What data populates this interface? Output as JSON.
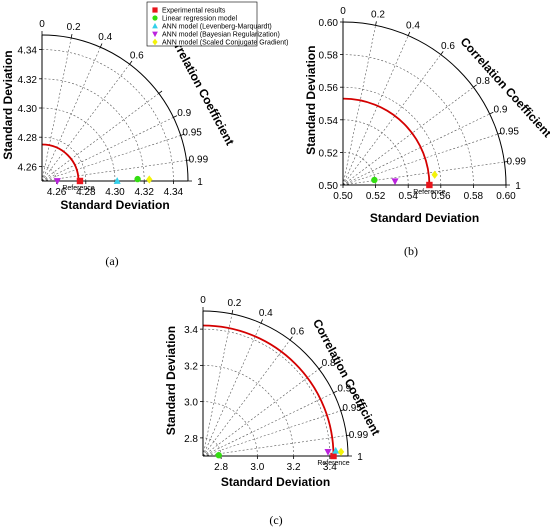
{
  "chart_data": [
    {
      "type": "scatter",
      "subtype": "taylor",
      "panel_label": "(a)",
      "xlabel": "Standard Deviation",
      "ylabel": "Standard Deviation",
      "arc_label": "Correlation Coefficient",
      "reference_label": "Reference",
      "std_range": [
        4.25,
        4.35
      ],
      "std_ticks": [
        4.26,
        4.28,
        4.3,
        4.32,
        4.34
      ],
      "std_tick_labels": [
        "4.26",
        "4.28",
        "4.30",
        "4.32",
        "4.34"
      ],
      "corr_ticks": [
        0,
        0.2,
        0.4,
        0.6,
        0.8,
        0.9,
        0.95,
        0.99,
        1
      ],
      "corr_tick_labels": [
        "0",
        "0.2",
        "0.4",
        "0.6",
        "",
        "0.9",
        "0.95",
        "0.99",
        "1"
      ],
      "reference_std": 4.275,
      "points": [
        {
          "series": "Experimental results",
          "std": 4.276,
          "corr": 1.0
        },
        {
          "series": "Linear regression model",
          "std": 4.3155,
          "corr": 0.9998
        },
        {
          "series": "ANN model (Levenberg-Marquardt)",
          "std": 4.3015,
          "corr": 1.0
        },
        {
          "series": "ANN model (Bayesian Regularization)",
          "std": 4.2605,
          "corr": 1.0
        },
        {
          "series": "ANN model (Scaled Conjugate Gradient)",
          "std": 4.3235,
          "corr": 0.9999
        }
      ]
    },
    {
      "type": "scatter",
      "subtype": "taylor",
      "panel_label": "(b)",
      "xlabel": "Standard Deviation",
      "ylabel": "Standard Deviation",
      "arc_label": "Correlation Coefficient",
      "reference_label": "Reference",
      "std_range": [
        0.5,
        0.6
      ],
      "std_ticks": [
        0.5,
        0.52,
        0.54,
        0.56,
        0.58,
        0.6
      ],
      "std_tick_labels": [
        "0.50",
        "0.52",
        "0.54",
        "0.56",
        "0.58",
        "0.60"
      ],
      "corr_ticks": [
        0,
        0.2,
        0.4,
        0.6,
        0.8,
        0.9,
        0.95,
        0.99,
        1
      ],
      "corr_tick_labels": [
        "0",
        "0.2",
        "0.4",
        "0.6",
        "0.8",
        "0.9",
        "0.95",
        "0.99",
        "1"
      ],
      "reference_std": 0.553,
      "points": [
        {
          "series": "Experimental results",
          "std": 0.553,
          "corr": 1.0
        },
        {
          "series": "Linear regression model",
          "std": 0.5195,
          "corr": 0.9874
        },
        {
          "series": "ANN model (Bayesian Regularization)",
          "std": 0.532,
          "corr": 0.9975
        },
        {
          "series": "ANN model (Scaled Conjugate Gradient)",
          "std": 0.5566,
          "corr": 0.9938
        }
      ]
    },
    {
      "type": "scatter",
      "subtype": "taylor",
      "panel_label": "(c)",
      "xlabel": "Standard Deviation",
      "ylabel": "Standard Deviation",
      "arc_label": "Correlation Coefficient",
      "reference_label": "Reference",
      "std_range": [
        2.7,
        3.5
      ],
      "std_ticks": [
        2.8,
        3.0,
        3.2,
        3.4
      ],
      "std_tick_labels": [
        "2.8",
        "3.0",
        "3.2",
        "3.4"
      ],
      "corr_ticks": [
        0,
        0.2,
        0.4,
        0.6,
        0.8,
        0.9,
        0.95,
        0.99,
        1
      ],
      "corr_tick_labels": [
        "0",
        "0.2",
        "0.4",
        "0.6",
        "0.8",
        "0.9",
        "0.95",
        "0.99",
        "1"
      ],
      "reference_std": 3.42,
      "points": [
        {
          "series": "Experimental results",
          "std": 3.42,
          "corr": 1.0
        },
        {
          "series": "Linear regression model",
          "std": 2.787,
          "corr": 0.9988
        },
        {
          "series": "ANN model (Levenberg-Marquardt)",
          "std": 3.433,
          "corr": 0.9992
        },
        {
          "series": "ANN model (Bayesian Regularization)",
          "std": 3.39,
          "corr": 0.99945
        },
        {
          "series": "ANN model (Scaled Conjugate Gradient)",
          "std": 3.462,
          "corr": 0.99955
        }
      ]
    }
  ],
  "legend": {
    "items": [
      {
        "label": "Experimental results",
        "marker": "square",
        "color": "#e8141c"
      },
      {
        "label": "Linear regression model",
        "marker": "circle",
        "color": "#33dd11"
      },
      {
        "label": "ANN model (Levenberg-Marquardt)",
        "marker": "triangle-up",
        "color": "#33d0ea"
      },
      {
        "label": "ANN model (Bayesian Regularization)",
        "marker": "triangle-down",
        "color": "#bb22dd"
      },
      {
        "label": "ANN model (Scaled Conjugate Gradient)",
        "marker": "diamond",
        "color": "#f3f30a"
      }
    ]
  },
  "colors": {
    "reference_arc": "#d40000",
    "grid": "#555555",
    "axis": "#000000"
  }
}
